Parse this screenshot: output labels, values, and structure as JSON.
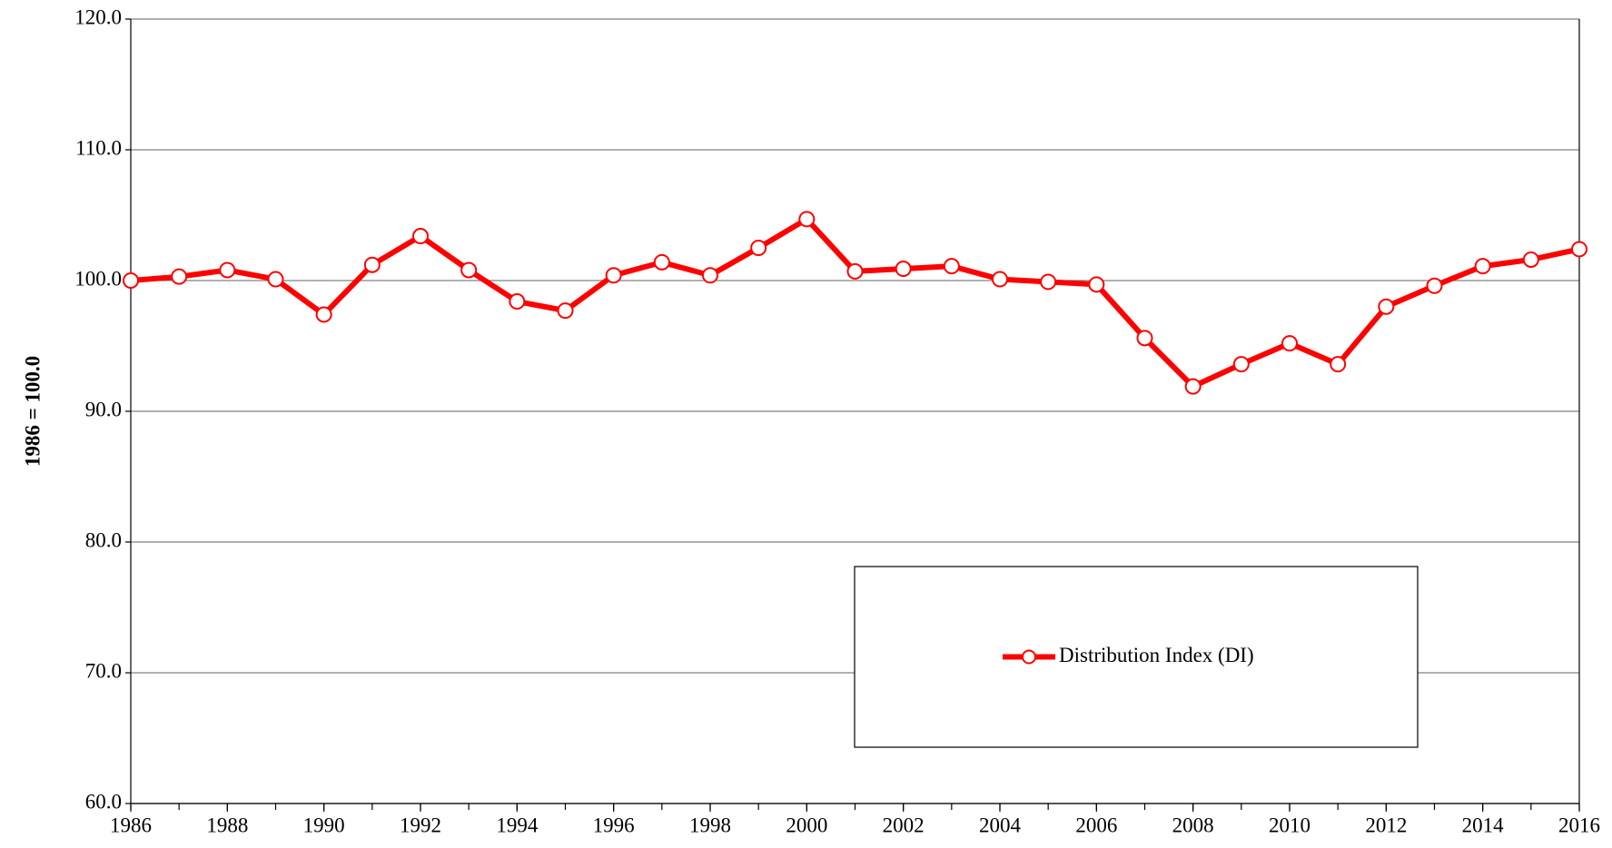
{
  "chart_data": {
    "type": "line",
    "y_label": "1986 = 100.0",
    "x": [
      1986,
      1987,
      1988,
      1989,
      1990,
      1991,
      1992,
      1993,
      1994,
      1995,
      1996,
      1997,
      1998,
      1999,
      2000,
      2001,
      2002,
      2003,
      2004,
      2005,
      2006,
      2007,
      2008,
      2009,
      2010,
      2011,
      2012,
      2013,
      2014,
      2015,
      2016
    ],
    "series": [
      {
        "name": "Distribution Index (DI)",
        "color": "#ff0000",
        "values": [
          100.0,
          100.3,
          100.8,
          100.1,
          97.4,
          101.2,
          103.4,
          100.8,
          98.4,
          97.7,
          100.4,
          101.4,
          100.4,
          102.5,
          104.7,
          100.7,
          100.9,
          101.1,
          100.1,
          99.9,
          99.7,
          95.6,
          91.9,
          93.6,
          95.2,
          93.6,
          98.0,
          99.6,
          101.1,
          101.6,
          102.4
        ]
      }
    ],
    "xlim": [
      1986,
      2016
    ],
    "xticks": [
      1986,
      1988,
      1990,
      1992,
      1994,
      1996,
      1998,
      2000,
      2002,
      2004,
      2006,
      2008,
      2010,
      2012,
      2014,
      2016
    ],
    "ylim": [
      60,
      120
    ],
    "yticks": [
      {
        "value": 60,
        "label": "60.0"
      },
      {
        "value": 70,
        "label": "70.0"
      },
      {
        "value": 80,
        "label": "80.0"
      },
      {
        "value": 90,
        "label": "90.0"
      },
      {
        "value": 100,
        "label": "100.0"
      },
      {
        "value": 110,
        "label": "110.0"
      },
      {
        "value": 120,
        "label": "120.0"
      }
    ],
    "grid": true,
    "legend": "lower-right"
  }
}
